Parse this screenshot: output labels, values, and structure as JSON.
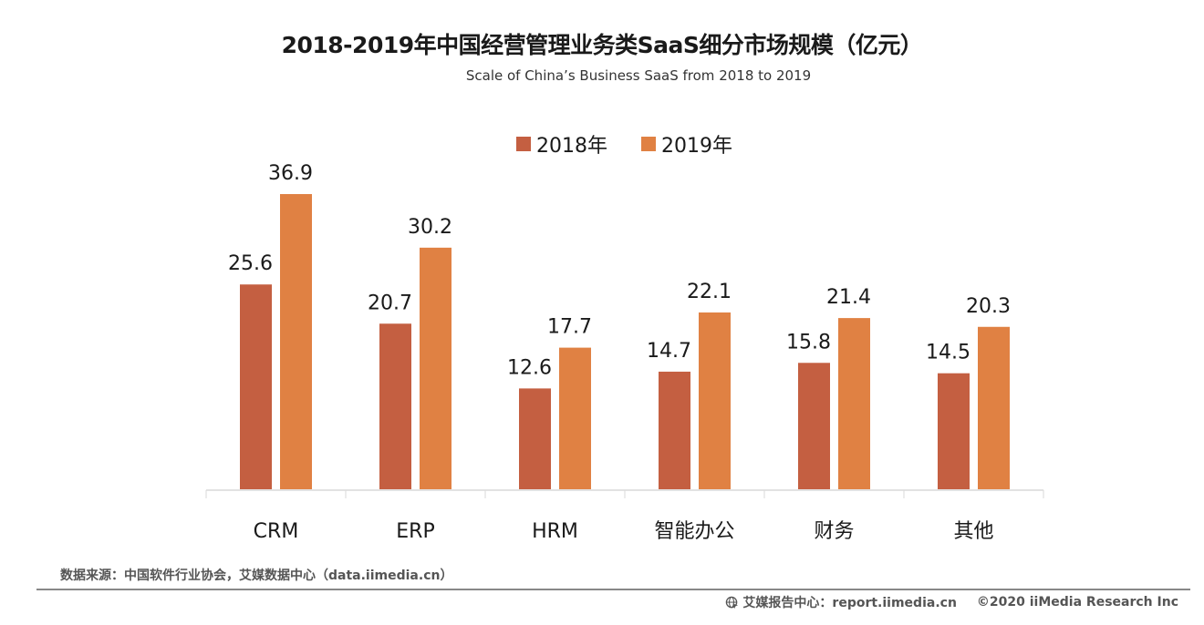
{
  "chart_data": {
    "type": "bar",
    "title": "2018-2019年中国经营管理业务类SaaS细分市场规模（亿元）",
    "subtitle": "Scale of China’s Business SaaS from 2018 to 2019",
    "categories": [
      "CRM",
      "ERP",
      "HRM",
      "智能办公",
      "财务",
      "其他"
    ],
    "series": [
      {
        "name": "2018年",
        "color": "#c45f41",
        "values": [
          25.6,
          20.7,
          12.6,
          14.7,
          15.8,
          14.5
        ]
      },
      {
        "name": "2019年",
        "color": "#e08143",
        "values": [
          36.9,
          30.2,
          17.7,
          22.1,
          21.4,
          20.3
        ]
      }
    ],
    "xlabel": "",
    "ylabel": "",
    "ylim": [
      0,
      40
    ],
    "grid": false,
    "legend": "top-center",
    "data_labels": true
  },
  "source": "数据来源：中国软件行业协会，艾媒数据中心（data.iimedia.cn）",
  "footer": {
    "icon": "globe-icon",
    "report_center": "艾媒报告中心：report.iimedia.cn",
    "copyright": "©2020  iiMedia Research  Inc"
  }
}
